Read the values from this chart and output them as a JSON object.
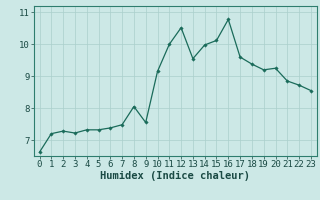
{
  "x": [
    0,
    1,
    2,
    3,
    4,
    5,
    6,
    7,
    8,
    9,
    10,
    11,
    12,
    13,
    14,
    15,
    16,
    17,
    18,
    19,
    20,
    21,
    22,
    23
  ],
  "y": [
    6.62,
    7.2,
    7.28,
    7.22,
    7.32,
    7.32,
    7.38,
    7.48,
    8.05,
    7.55,
    9.15,
    10.0,
    10.52,
    9.55,
    9.98,
    10.12,
    10.78,
    9.6,
    9.38,
    9.2,
    9.25,
    8.85,
    8.72,
    8.55
  ],
  "xlabel": "Humidex (Indice chaleur)",
  "ylim": [
    6.5,
    11.2
  ],
  "xlim": [
    -0.5,
    23.5
  ],
  "yticks": [
    7,
    8,
    9,
    10,
    11
  ],
  "xticks": [
    0,
    1,
    2,
    3,
    4,
    5,
    6,
    7,
    8,
    9,
    10,
    11,
    12,
    13,
    14,
    15,
    16,
    17,
    18,
    19,
    20,
    21,
    22,
    23
  ],
  "line_color": "#1a6b5a",
  "marker": "D",
  "marker_size": 1.8,
  "bg_color": "#cce8e6",
  "grid_color": "#aacfcc",
  "axes_color": "#2e7d6e",
  "tick_label_color": "#1a4a44",
  "xlabel_fontsize": 7.5,
  "tick_fontsize": 6.5
}
